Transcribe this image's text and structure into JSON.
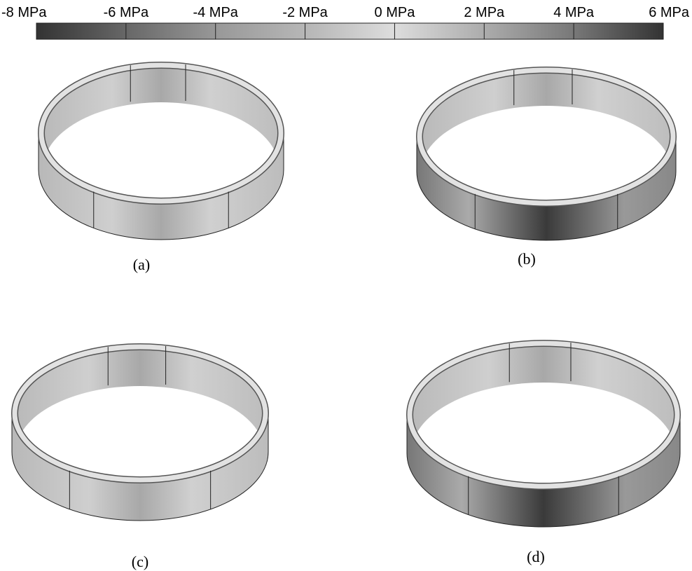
{
  "colorbar": {
    "labels": [
      "-8 MPa",
      "-6 MPa",
      "-4 MPa",
      "-2 MPa",
      "0 MPa",
      "2 MPa",
      "4 MPa",
      "6 MPa"
    ]
  },
  "panels": [
    {
      "label": "(a)"
    },
    {
      "label": "(b)"
    },
    {
      "label": "(c)"
    },
    {
      "label": "(d)"
    }
  ]
}
